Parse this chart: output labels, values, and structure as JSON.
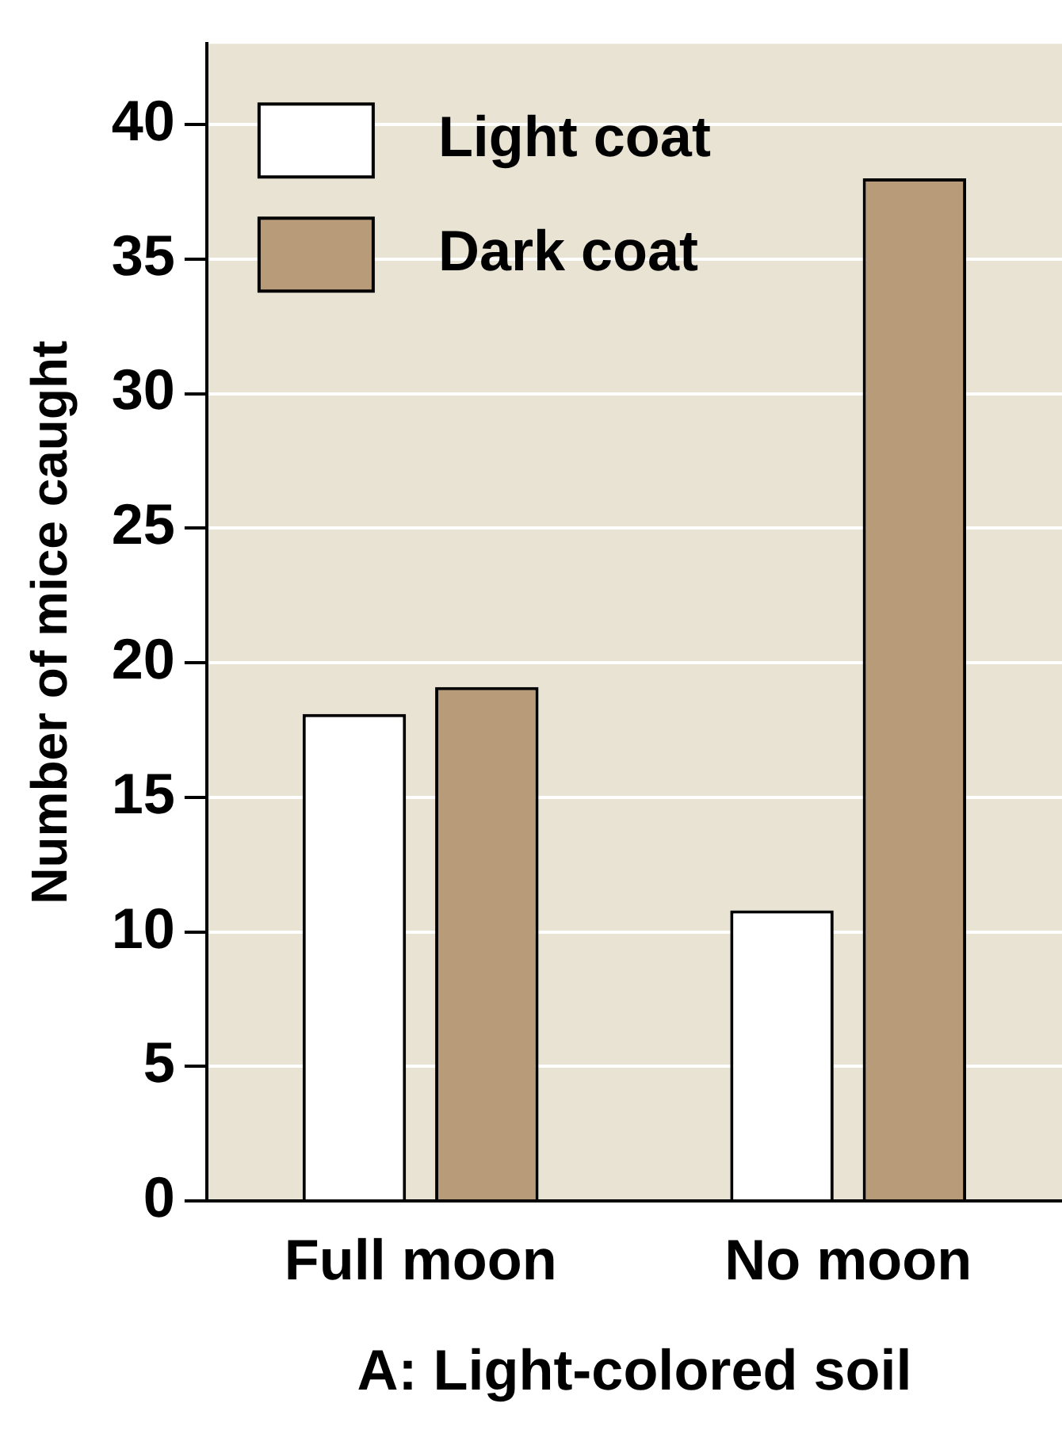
{
  "chart_data": {
    "type": "bar",
    "xlabel": "A: Light-colored soil",
    "ylabel": "Number of mice caught",
    "categories": [
      "Full moon",
      "No moon"
    ],
    "series": [
      {
        "name": "Light coat",
        "color": "#ffffff",
        "values": [
          18.1,
          10.8
        ]
      },
      {
        "name": "Dark coat",
        "color": "#b89b79",
        "values": [
          19.1,
          38
        ]
      }
    ],
    "ylim": [
      0,
      43
    ],
    "yticks": [
      0,
      5,
      10,
      15,
      20,
      25,
      30,
      35,
      40
    ],
    "grid": "y",
    "legend": "top left"
  }
}
